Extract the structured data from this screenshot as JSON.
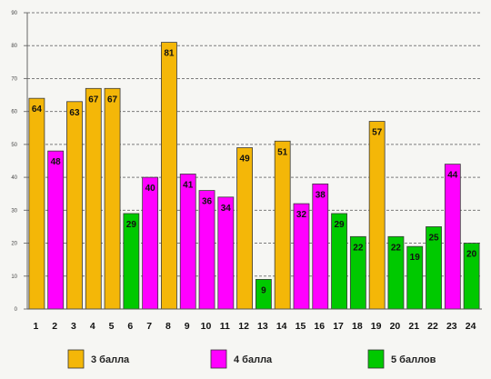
{
  "chart_data": {
    "type": "bar",
    "categories": [
      "1",
      "2",
      "3",
      "4",
      "5",
      "6",
      "7",
      "8",
      "9",
      "10",
      "11",
      "12",
      "13",
      "14",
      "15",
      "16",
      "17",
      "18",
      "19",
      "20",
      "21",
      "22",
      "23",
      "24"
    ],
    "series": [
      {
        "name": "3 балла",
        "color": "#F4B708",
        "values": [
          64,
          null,
          63,
          67,
          67,
          null,
          null,
          81,
          null,
          null,
          null,
          49,
          null,
          51,
          null,
          null,
          null,
          null,
          57,
          null,
          null,
          null,
          null,
          null
        ]
      },
      {
        "name": "4 балла",
        "color": "#FF00FF",
        "values": [
          null,
          48,
          null,
          null,
          null,
          null,
          40,
          null,
          41,
          36,
          34,
          null,
          null,
          null,
          32,
          38,
          null,
          null,
          null,
          null,
          null,
          null,
          44,
          null
        ]
      },
      {
        "name": "5 баллов",
        "color": "#00C900",
        "values": [
          null,
          null,
          null,
          null,
          null,
          29,
          null,
          null,
          null,
          null,
          null,
          null,
          9,
          null,
          null,
          null,
          29,
          22,
          null,
          22,
          19,
          25,
          null,
          20
        ]
      }
    ],
    "ylim": [
      0,
      90
    ],
    "yticks": [
      0,
      10,
      20,
      30,
      40,
      50,
      60,
      70,
      80,
      90
    ],
    "grid": true,
    "legend": "bottom"
  }
}
